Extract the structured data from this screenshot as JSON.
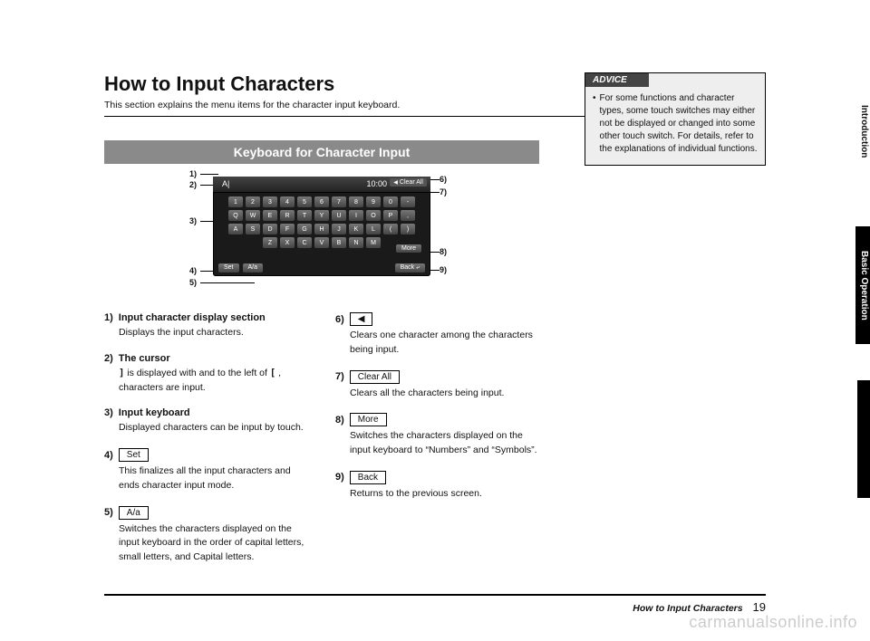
{
  "header": {
    "title": "How to Input Characters",
    "subtitle": "This section explains the menu items for the character input keyboard."
  },
  "section_banner": "Keyboard for Character Input",
  "keyboard": {
    "clock": "10:00",
    "clear_label": "Clear All",
    "rows": {
      "r1": [
        "1",
        "2",
        "3",
        "4",
        "5",
        "6",
        "7",
        "8",
        "9",
        "0",
        "-"
      ],
      "r2": [
        "Q",
        "W",
        "E",
        "R",
        "T",
        "Y",
        "U",
        "I",
        "O",
        "P",
        ","
      ],
      "r3": [
        "A",
        "S",
        "D",
        "F",
        "G",
        "H",
        "J",
        "K",
        "L",
        "(",
        ")"
      ],
      "r4": [
        "Z",
        "X",
        "C",
        "V",
        "B",
        "N",
        "M"
      ]
    },
    "more": "More",
    "set": "Set",
    "aa": "A/a",
    "back": "Back",
    "bg_color": "#1a1a1a",
    "key_gradient_top": "#777777",
    "key_gradient_bottom": "#444444"
  },
  "callouts": {
    "c1": "1)",
    "c2": "2)",
    "c3": "3)",
    "c4": "4)",
    "c5": "5)",
    "c6": "6)",
    "c7": "7)",
    "c8": "8)",
    "c9": "9)"
  },
  "left_items": [
    {
      "num": "1)",
      "title": "Input character display section",
      "desc": "Displays the input characters."
    },
    {
      "num": "2)",
      "title": "The cursor",
      "desc_parts": {
        "pre": "",
        "sym1": "]",
        "mid": " is displayed with and to the left of ",
        "sym2": "[",
        "post": " , characters are input."
      }
    },
    {
      "num": "3)",
      "title": "Input keyboard",
      "desc": "Displayed characters can be input by touch."
    },
    {
      "num": "4)",
      "button": "Set",
      "desc": "This finalizes all the input characters and ends character input mode."
    },
    {
      "num": "5)",
      "button": "A/a",
      "desc": "Switches the characters displayed on the input keyboard in the order of capital letters, small letters, and Capital letters."
    }
  ],
  "right_items": [
    {
      "num": "6)",
      "symbol": "◀",
      "desc": "Clears one character among the characters being input."
    },
    {
      "num": "7)",
      "button": "Clear All",
      "desc": "Clears all the characters being input."
    },
    {
      "num": "8)",
      "button": "More",
      "desc": "Switches the characters displayed on the input keyboard to “Numbers” and “Symbols”."
    },
    {
      "num": "9)",
      "button": "Back",
      "desc": "Returns to the previous screen."
    }
  ],
  "advice": {
    "header": "ADVICE",
    "text": "For some functions and character types, some touch switches may either not be displayed or changed into some other touch switch. For details, refer to the explanations of individual functions."
  },
  "side_tabs": {
    "intro": "Introduction",
    "basic": "Basic Operation"
  },
  "footer": {
    "title": "How to Input Characters",
    "page": "19"
  },
  "watermark": "carmanualsonline.info"
}
